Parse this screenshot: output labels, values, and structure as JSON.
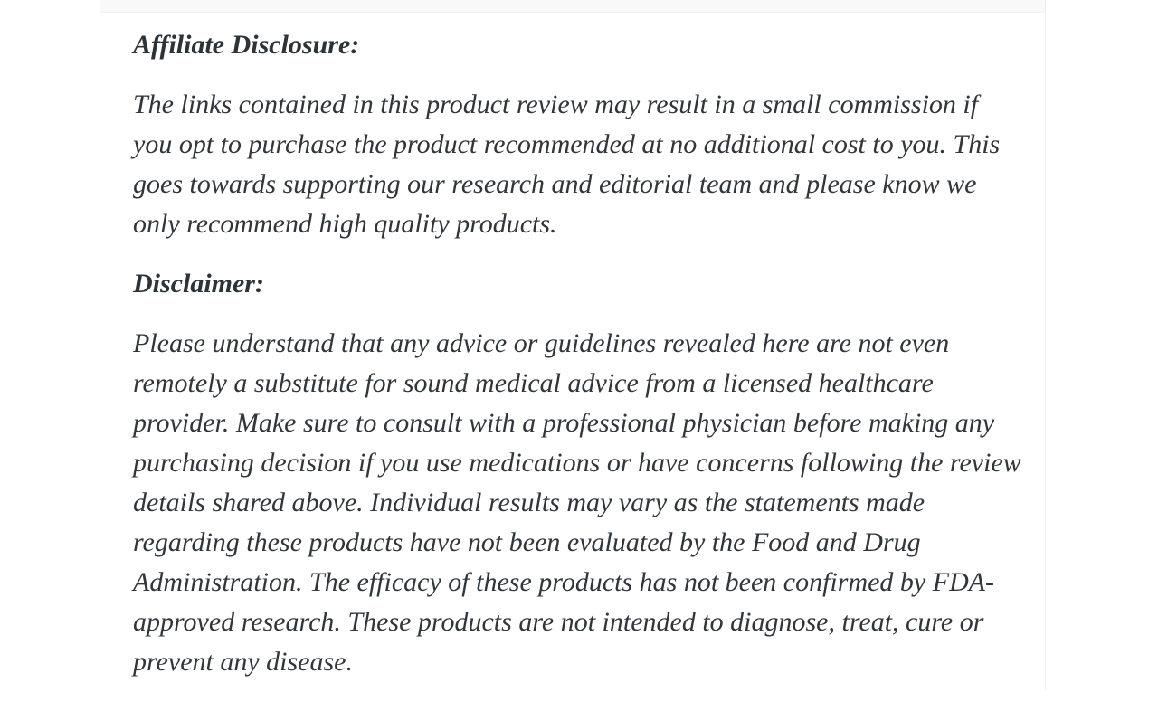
{
  "document": {
    "sections": [
      {
        "heading": "Affiliate Disclosure:",
        "paragraph_lines": [
          "The links contained in this product review may result in a small commission if",
          "you opt to purchase the product recommended at no additional cost to you. This",
          "goes towards supporting our research and editorial team and please know we",
          "only recommend high quality products."
        ]
      },
      {
        "heading": "Disclaimer:",
        "paragraph_lines": [
          "Please understand that any advice or guidelines revealed here are not even",
          "remotely a substitute for sound medical advice from a licensed healthcare",
          "provider. Make sure to consult with a professional physician before making any",
          "purchasing decision if you use medications or have concerns following the review",
          "details shared above. Individual results may vary as the statements made",
          "regarding these products have not been evaluated by the Food and Drug",
          "Administration. The efficacy of these products has not been confirmed by FDA-",
          "approved research. These products are not intended to diagnose, treat, cure or",
          "prevent any disease."
        ]
      }
    ],
    "colors": {
      "text": "#31363b",
      "heading_text": "#2e3338",
      "card_background": "#ffffff",
      "top_gap_background": "#f9f9f9",
      "divider": "#ededed"
    }
  }
}
